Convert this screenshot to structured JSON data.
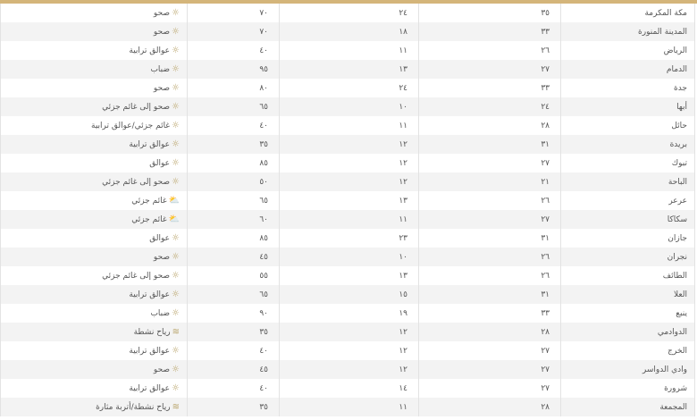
{
  "accent_color": "#d4b57a",
  "rows": [
    {
      "city": "مكة المكرمة",
      "max": "٣٥",
      "min": "٢٤",
      "humidity": "٧٠",
      "weather": "صحو",
      "icon": "sun-icon"
    },
    {
      "city": "المدينة المنورة",
      "max": "٣٣",
      "min": "١٨",
      "humidity": "٧٠",
      "weather": "صحو",
      "icon": "sun-icon"
    },
    {
      "city": "الرياض",
      "max": "٢٦",
      "min": "١١",
      "humidity": "٤٠",
      "weather": "عوالق ترابية",
      "icon": "dust-icon"
    },
    {
      "city": "الدمام",
      "max": "٢٧",
      "min": "١٣",
      "humidity": "٩٥",
      "weather": "ضباب",
      "icon": "dust-icon"
    },
    {
      "city": "جدة",
      "max": "٣٣",
      "min": "٢٤",
      "humidity": "٨٠",
      "weather": "صحو",
      "icon": "sun-icon"
    },
    {
      "city": "أبها",
      "max": "٢٤",
      "min": "١٠",
      "humidity": "٦٥",
      "weather": "صحو إلى غائم جزئي",
      "icon": "dust-icon"
    },
    {
      "city": "حائل",
      "max": "٢٨",
      "min": "١١",
      "humidity": "٤٠",
      "weather": "غائم جزئي/عوالق ترابية",
      "icon": "dust-icon"
    },
    {
      "city": "بريدة",
      "max": "٣١",
      "min": "١٢",
      "humidity": "٣٥",
      "weather": "عوالق ترابية",
      "icon": "dust-icon"
    },
    {
      "city": "تبوك",
      "max": "٢٧",
      "min": "١٢",
      "humidity": "٨٥",
      "weather": "عوالق",
      "icon": "dust-icon"
    },
    {
      "city": "الباحة",
      "max": "٢١",
      "min": "١٢",
      "humidity": "٥٠",
      "weather": "صحو إلى غائم جزئي",
      "icon": "dust-icon"
    },
    {
      "city": "عرعر",
      "max": "٢٦",
      "min": "١٣",
      "humidity": "٦٥",
      "weather": "غائم جزئي",
      "icon": "partly-cloudy-icon"
    },
    {
      "city": "سكاكا",
      "max": "٢٧",
      "min": "١١",
      "humidity": "٦٠",
      "weather": "غائم جزئي",
      "icon": "partly-cloudy-icon"
    },
    {
      "city": "جازان",
      "max": "٣١",
      "min": "٢٣",
      "humidity": "٨٥",
      "weather": "عوالق",
      "icon": "dust-icon"
    },
    {
      "city": "نجران",
      "max": "٢٦",
      "min": "١٠",
      "humidity": "٤٥",
      "weather": "صحو",
      "icon": "sun-icon"
    },
    {
      "city": "الطائف",
      "max": "٢٦",
      "min": "١٣",
      "humidity": "٥٥",
      "weather": "صحو إلى غائم جزئي",
      "icon": "dust-icon"
    },
    {
      "city": "العلا",
      "max": "٣١",
      "min": "١٥",
      "humidity": "٦٥",
      "weather": "عوالق ترابية",
      "icon": "dust-icon"
    },
    {
      "city": "ينبع",
      "max": "٣٣",
      "min": "١٩",
      "humidity": "٩٠",
      "weather": "ضباب",
      "icon": "dust-icon"
    },
    {
      "city": "الدوادمي",
      "max": "٢٨",
      "min": "١٢",
      "humidity": "٣٥",
      "weather": "رياح نشطة",
      "icon": "wind-icon"
    },
    {
      "city": "الخرج",
      "max": "٢٧",
      "min": "١٢",
      "humidity": "٤٠",
      "weather": "عوالق ترابية",
      "icon": "dust-icon"
    },
    {
      "city": "وادي الدواسر",
      "max": "٢٧",
      "min": "١٢",
      "humidity": "٤٥",
      "weather": "صحو",
      "icon": "sun-icon"
    },
    {
      "city": "شرورة",
      "max": "٢٧",
      "min": "١٤",
      "humidity": "٤٠",
      "weather": "عوالق ترابية",
      "icon": "dust-icon"
    },
    {
      "city": "المجمعة",
      "max": "٢٨",
      "min": "١١",
      "humidity": "٣٥",
      "weather": "رياح نشطة/أتربة مثارة",
      "icon": "wind-icon"
    }
  ]
}
